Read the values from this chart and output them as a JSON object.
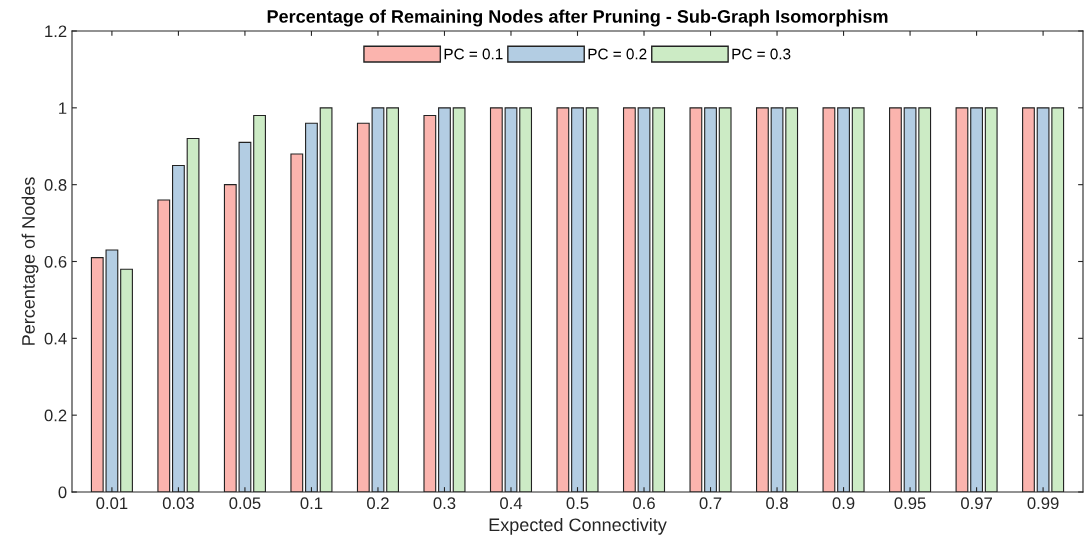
{
  "chart_data": {
    "type": "bar",
    "title": "Percentage of Remaining Nodes after Pruning - Sub-Graph Isomorphism",
    "xlabel": "Expected Connectivity",
    "ylabel": "Percentage of Nodes",
    "categories": [
      "0.01",
      "0.03",
      "0.05",
      "0.1",
      "0.2",
      "0.3",
      "0.4",
      "0.5",
      "0.6",
      "0.7",
      "0.8",
      "0.9",
      "0.95",
      "0.97",
      "0.99"
    ],
    "series": [
      {
        "name": "PC = 0.1",
        "color": "#fbb4ae",
        "values": [
          0.61,
          0.76,
          0.8,
          0.88,
          0.96,
          0.98,
          1.0,
          1.0,
          1.0,
          1.0,
          1.0,
          1.0,
          1.0,
          1.0,
          1.0
        ]
      },
      {
        "name": "PC = 0.2",
        "color": "#b3cde3",
        "values": [
          0.63,
          0.85,
          0.91,
          0.96,
          1.0,
          1.0,
          1.0,
          1.0,
          1.0,
          1.0,
          1.0,
          1.0,
          1.0,
          1.0,
          1.0
        ]
      },
      {
        "name": "PC = 0.3",
        "color": "#ccebc5",
        "values": [
          0.58,
          0.92,
          0.98,
          1.0,
          1.0,
          1.0,
          1.0,
          1.0,
          1.0,
          1.0,
          1.0,
          1.0,
          1.0,
          1.0,
          1.0
        ]
      }
    ],
    "ylim": [
      0,
      1.2
    ],
    "yticks": [
      0,
      0.2,
      0.4,
      0.6,
      0.8,
      1,
      1.2
    ],
    "grid": false,
    "legend": "top"
  }
}
